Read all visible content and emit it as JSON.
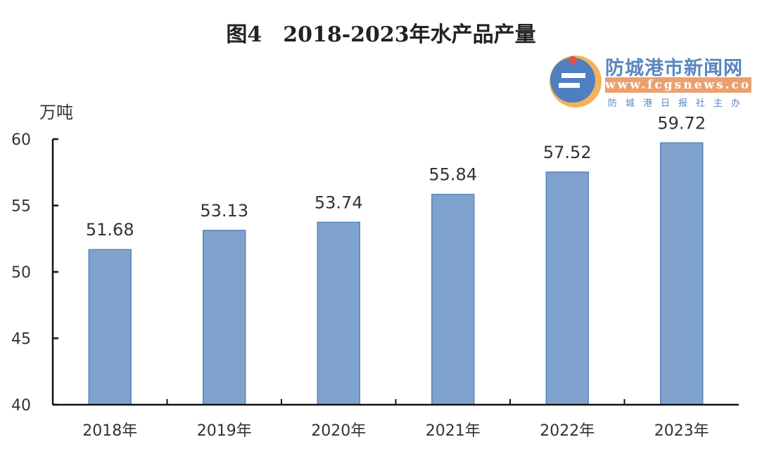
{
  "chart_data": {
    "type": "bar",
    "title": "图4　2018-2023年水产品产量",
    "ylabel": "万吨",
    "xlabel": "",
    "categories": [
      "2018年",
      "2019年",
      "2020年",
      "2021年",
      "2022年",
      "2023年"
    ],
    "values": [
      51.68,
      53.13,
      53.74,
      55.84,
      57.52,
      59.72
    ],
    "data_labels": [
      "51.68",
      "53.13",
      "53.74",
      "55.84",
      "57.52",
      "59.72"
    ],
    "ylim": [
      40,
      60
    ],
    "yticks": [
      "40",
      "45",
      "50",
      "55",
      "60"
    ],
    "grid": false,
    "legend": "none",
    "bar_color": "#7fa3cd",
    "bar_edge_color": "#5b86b8"
  },
  "watermark": {
    "title": "防城港市新闻网",
    "url": "www.fcgsnews.com",
    "subtitle": "防城港日报社主办"
  }
}
